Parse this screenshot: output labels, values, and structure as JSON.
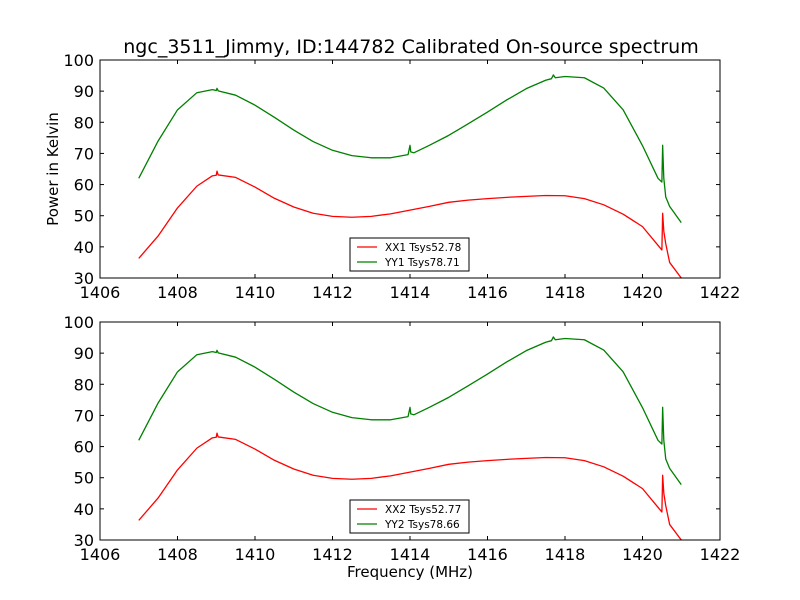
{
  "figure": {
    "title": "ngc_3511_Jimmy, ID:144782 Calibrated On-source spectrum"
  },
  "chart_data": [
    {
      "type": "line",
      "ylabel": "Power in Kelvin",
      "xlabel": "",
      "xlim": [
        1406,
        1422
      ],
      "ylim": [
        30,
        100
      ],
      "xticks": [
        1406,
        1408,
        1410,
        1412,
        1414,
        1416,
        1418,
        1420,
        1422
      ],
      "yticks": [
        30,
        40,
        50,
        60,
        70,
        80,
        90,
        100
      ],
      "grid": false,
      "legend_position": "lower-center",
      "series": [
        {
          "name": "XX1 Tsys52.78",
          "color": "#ff0000",
          "x": [
            1407.0,
            1407.5,
            1408.0,
            1408.5,
            1408.9,
            1409.0,
            1409.02,
            1409.05,
            1409.5,
            1410.0,
            1410.5,
            1411.0,
            1411.5,
            1412.0,
            1412.5,
            1413.0,
            1413.5,
            1414.0,
            1414.5,
            1415.0,
            1415.5,
            1416.0,
            1416.5,
            1417.0,
            1417.5,
            1418.0,
            1418.5,
            1419.0,
            1419.5,
            1420.0,
            1420.4,
            1420.5,
            1420.52,
            1420.55,
            1420.6,
            1420.7,
            1421.0
          ],
          "values": [
            36.3,
            43.5,
            52.5,
            59.5,
            62.8,
            63.0,
            64.3,
            63.1,
            62.3,
            59.2,
            55.6,
            52.8,
            50.8,
            49.8,
            49.5,
            49.8,
            50.6,
            51.8,
            53.0,
            54.3,
            55.0,
            55.5,
            55.9,
            56.2,
            56.5,
            56.4,
            55.5,
            53.5,
            50.5,
            46.5,
            40.5,
            39.0,
            50.8,
            45.0,
            41.0,
            35.0,
            30.0
          ]
        },
        {
          "name": "YY1 Tsys78.71",
          "color": "#008000",
          "x": [
            1407.0,
            1407.5,
            1408.0,
            1408.5,
            1408.9,
            1409.0,
            1409.02,
            1409.05,
            1409.5,
            1410.0,
            1410.5,
            1411.0,
            1411.5,
            1412.0,
            1412.5,
            1413.0,
            1413.5,
            1413.95,
            1414.0,
            1414.02,
            1414.1,
            1414.5,
            1415.0,
            1415.5,
            1416.0,
            1416.5,
            1417.0,
            1417.5,
            1417.65,
            1417.7,
            1417.75,
            1418.0,
            1418.5,
            1419.0,
            1419.5,
            1420.0,
            1420.4,
            1420.5,
            1420.52,
            1420.55,
            1420.6,
            1420.7,
            1421.0
          ],
          "values": [
            62.0,
            74.0,
            84.0,
            89.5,
            90.5,
            90.2,
            90.9,
            90.1,
            88.7,
            85.5,
            81.6,
            77.5,
            73.8,
            71.0,
            69.3,
            68.6,
            68.6,
            69.6,
            72.6,
            70.5,
            70.2,
            72.6,
            75.8,
            79.5,
            83.3,
            87.2,
            90.8,
            93.5,
            94.0,
            95.2,
            94.3,
            94.7,
            94.3,
            91.0,
            84.0,
            72.5,
            62.0,
            60.8,
            72.6,
            62.0,
            56.0,
            53.0,
            47.8
          ]
        }
      ]
    },
    {
      "type": "line",
      "ylabel": "",
      "xlabel": "Frequency (MHz)",
      "xlim": [
        1406,
        1422
      ],
      "ylim": [
        30,
        100
      ],
      "xticks": [
        1406,
        1408,
        1410,
        1412,
        1414,
        1416,
        1418,
        1420,
        1422
      ],
      "yticks": [
        30,
        40,
        50,
        60,
        70,
        80,
        90,
        100
      ],
      "grid": false,
      "legend_position": "lower-center",
      "series": [
        {
          "name": "XX2 Tsys52.77",
          "color": "#ff0000",
          "x": [
            1407.0,
            1407.5,
            1408.0,
            1408.5,
            1408.9,
            1409.0,
            1409.02,
            1409.05,
            1409.5,
            1410.0,
            1410.5,
            1411.0,
            1411.5,
            1412.0,
            1412.5,
            1413.0,
            1413.5,
            1414.0,
            1414.5,
            1415.0,
            1415.5,
            1416.0,
            1416.5,
            1417.0,
            1417.5,
            1418.0,
            1418.5,
            1419.0,
            1419.5,
            1420.0,
            1420.4,
            1420.5,
            1420.52,
            1420.55,
            1420.6,
            1420.7,
            1421.0
          ],
          "values": [
            36.3,
            43.5,
            52.5,
            59.5,
            62.8,
            63.0,
            64.3,
            63.1,
            62.3,
            59.2,
            55.6,
            52.8,
            50.8,
            49.8,
            49.5,
            49.8,
            50.6,
            51.8,
            53.0,
            54.3,
            55.0,
            55.5,
            55.9,
            56.2,
            56.5,
            56.4,
            55.5,
            53.5,
            50.5,
            46.5,
            40.5,
            39.0,
            50.8,
            45.0,
            41.0,
            35.0,
            30.0
          ]
        },
        {
          "name": "YY2 Tsys78.66",
          "color": "#008000",
          "x": [
            1407.0,
            1407.5,
            1408.0,
            1408.5,
            1408.9,
            1409.0,
            1409.02,
            1409.05,
            1409.5,
            1410.0,
            1410.5,
            1411.0,
            1411.5,
            1412.0,
            1412.5,
            1413.0,
            1413.5,
            1413.95,
            1414.0,
            1414.02,
            1414.1,
            1414.5,
            1415.0,
            1415.5,
            1416.0,
            1416.5,
            1417.0,
            1417.5,
            1417.65,
            1417.7,
            1417.75,
            1418.0,
            1418.5,
            1419.0,
            1419.5,
            1420.0,
            1420.4,
            1420.5,
            1420.52,
            1420.55,
            1420.6,
            1420.7,
            1421.0
          ],
          "values": [
            62.0,
            74.0,
            84.0,
            89.5,
            90.5,
            90.2,
            90.9,
            90.1,
            88.7,
            85.5,
            81.6,
            77.5,
            73.8,
            71.0,
            69.3,
            68.6,
            68.6,
            69.6,
            72.6,
            70.5,
            70.2,
            72.6,
            75.8,
            79.5,
            83.3,
            87.2,
            90.8,
            93.5,
            94.0,
            95.2,
            94.3,
            94.7,
            94.3,
            91.0,
            84.0,
            72.5,
            62.0,
            60.8,
            72.6,
            62.0,
            56.0,
            53.0,
            47.8
          ]
        }
      ]
    }
  ]
}
